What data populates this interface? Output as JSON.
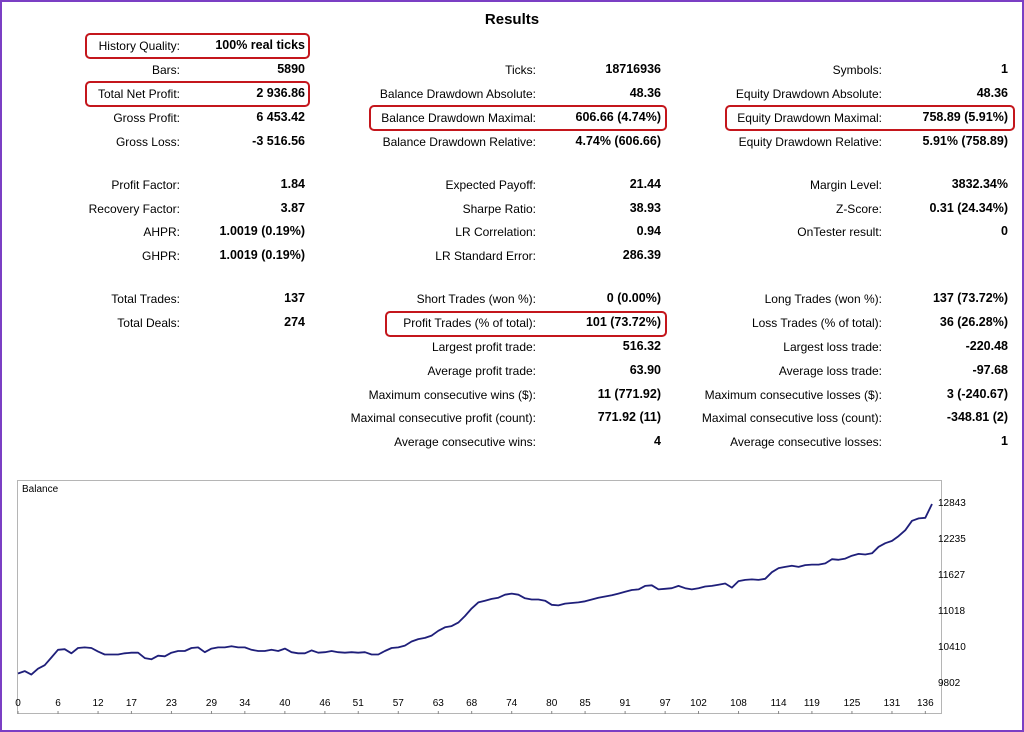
{
  "title": "Results",
  "rows": [
    [
      {
        "label": "History Quality:",
        "value": "100% real ticks"
      }
    ],
    [
      {
        "label": "Bars:",
        "value": "5890"
      },
      {
        "label": "Ticks:",
        "value": "18716936"
      },
      {
        "label": "Symbols:",
        "value": "1"
      }
    ],
    [
      {
        "label": "Total Net Profit:",
        "value": "2 936.86"
      },
      {
        "label": "Balance Drawdown Absolute:",
        "value": "48.36"
      },
      {
        "label": "Equity Drawdown Absolute:",
        "value": "48.36"
      }
    ],
    [
      {
        "label": "Gross Profit:",
        "value": "6 453.42"
      },
      {
        "label": "Balance Drawdown Maximal:",
        "value": "606.66 (4.74%)"
      },
      {
        "label": "Equity Drawdown Maximal:",
        "value": "758.89 (5.91%)"
      }
    ],
    [
      {
        "label": "Gross Loss:",
        "value": "-3 516.56"
      },
      {
        "label": "Balance Drawdown Relative:",
        "value": "4.74% (606.66)"
      },
      {
        "label": "Equity Drawdown Relative:",
        "value": "5.91% (758.89)"
      }
    ],
    [
      {
        "label": "Profit Factor:",
        "value": "1.84"
      },
      {
        "label": "Expected Payoff:",
        "value": "21.44"
      },
      {
        "label": "Margin Level:",
        "value": "3832.34%"
      }
    ],
    [
      {
        "label": "Recovery Factor:",
        "value": "3.87"
      },
      {
        "label": "Sharpe Ratio:",
        "value": "38.93"
      },
      {
        "label": "Z-Score:",
        "value": "0.31 (24.34%)"
      }
    ],
    [
      {
        "label": "AHPR:",
        "value": "1.0019 (0.19%)"
      },
      {
        "label": "LR Correlation:",
        "value": "0.94"
      },
      {
        "label": "OnTester result:",
        "value": "0"
      }
    ],
    [
      {
        "label": "GHPR:",
        "value": "1.0019 (0.19%)"
      },
      {
        "label": "LR Standard Error:",
        "value": "286.39"
      }
    ],
    [
      {
        "label": "Total Trades:",
        "value": "137"
      },
      {
        "label": "Short Trades (won %):",
        "value": "0 (0.00%)"
      },
      {
        "label": "Long Trades (won %):",
        "value": "137 (73.72%)"
      }
    ],
    [
      {
        "label": "Total Deals:",
        "value": "274"
      },
      {
        "label": "Profit Trades (% of total):",
        "value": "101 (73.72%)"
      },
      {
        "label": "Loss Trades (% of total):",
        "value": "36 (26.28%)"
      }
    ],
    [
      null,
      {
        "label": "Largest profit trade:",
        "value": "516.32"
      },
      {
        "label": "Largest loss trade:",
        "value": "-220.48"
      }
    ],
    [
      null,
      {
        "label": "Average profit trade:",
        "value": "63.90"
      },
      {
        "label": "Average loss trade:",
        "value": "-97.68"
      }
    ],
    [
      null,
      {
        "label": "Maximum consecutive wins ($):",
        "value": "11 (771.92)"
      },
      {
        "label": "Maximum consecutive losses ($):",
        "value": "3 (-240.67)"
      }
    ],
    [
      null,
      {
        "label": "Maximal consecutive profit (count):",
        "value": "771.92 (11)"
      },
      {
        "label": "Maximal consecutive loss (count):",
        "value": "-348.81 (2)"
      }
    ],
    [
      null,
      {
        "label": "Average consecutive wins:",
        "value": "4"
      },
      {
        "label": "Average consecutive losses:",
        "value": "1"
      }
    ]
  ],
  "chart_data": {
    "type": "line",
    "title": "Balance",
    "yticks": [
      12843,
      12235,
      11627,
      11018,
      10410,
      9802
    ],
    "xticks": [
      0,
      6,
      12,
      17,
      23,
      29,
      34,
      40,
      46,
      51,
      57,
      63,
      68,
      74,
      80,
      85,
      91,
      97,
      102,
      108,
      114,
      119,
      125,
      131,
      136
    ],
    "ylim": [
      9802,
      12843
    ],
    "xlim": [
      0,
      137
    ],
    "series": [
      {
        "color": "#1f1f7a",
        "x": [
          0,
          1,
          2,
          3,
          4,
          5,
          6,
          7,
          8,
          9,
          10,
          11,
          12,
          13,
          14,
          15,
          16,
          17,
          18,
          19,
          20,
          21,
          22,
          23,
          24,
          25,
          26,
          27,
          28,
          29,
          30,
          31,
          32,
          33,
          34,
          35,
          36,
          37,
          38,
          39,
          40,
          41,
          42,
          43,
          44,
          45,
          46,
          47,
          48,
          49,
          50,
          51,
          52,
          53,
          54,
          55,
          56,
          57,
          58,
          59,
          60,
          61,
          62,
          63,
          64,
          65,
          66,
          67,
          68,
          69,
          70,
          71,
          72,
          73,
          74,
          75,
          76,
          77,
          78,
          79,
          80,
          81,
          82,
          83,
          84,
          85,
          86,
          87,
          88,
          89,
          90,
          91,
          92,
          93,
          94,
          95,
          96,
          97,
          98,
          99,
          100,
          101,
          102,
          103,
          104,
          105,
          106,
          107,
          108,
          109,
          110,
          111,
          112,
          113,
          114,
          115,
          116,
          117,
          118,
          119,
          120,
          121,
          122,
          123,
          124,
          125,
          126,
          127,
          128,
          129,
          130,
          131,
          132,
          133,
          134,
          135,
          136,
          137
        ],
        "y": [
          9980,
          10020,
          9960,
          10060,
          10120,
          10250,
          10380,
          10390,
          10320,
          10410,
          10420,
          10410,
          10350,
          10300,
          10300,
          10300,
          10320,
          10330,
          10330,
          10240,
          10220,
          10280,
          10270,
          10330,
          10360,
          10360,
          10410,
          10420,
          10340,
          10400,
          10420,
          10420,
          10440,
          10420,
          10420,
          10380,
          10360,
          10360,
          10380,
          10360,
          10400,
          10340,
          10320,
          10320,
          10370,
          10330,
          10340,
          10360,
          10340,
          10330,
          10340,
          10330,
          10340,
          10300,
          10300,
          10360,
          10410,
          10420,
          10450,
          10520,
          10560,
          10580,
          10620,
          10700,
          10760,
          10780,
          10840,
          10950,
          11080,
          11180,
          11210,
          11240,
          11260,
          11310,
          11330,
          11310,
          11250,
          11230,
          11230,
          11210,
          11140,
          11130,
          11160,
          11170,
          11180,
          11200,
          11230,
          11260,
          11280,
          11300,
          11330,
          11360,
          11390,
          11400,
          11460,
          11470,
          11400,
          11410,
          11420,
          11460,
          11420,
          11400,
          11420,
          11450,
          11460,
          11480,
          11500,
          11430,
          11540,
          11560,
          11570,
          11560,
          11580,
          11690,
          11760,
          11780,
          11800,
          11780,
          11810,
          11820,
          11820,
          11840,
          11910,
          11900,
          11920,
          11970,
          12000,
          11990,
          12010,
          12120,
          12180,
          12220,
          12300,
          12400,
          12560,
          12600,
          12610,
          12843
        ]
      }
    ]
  }
}
